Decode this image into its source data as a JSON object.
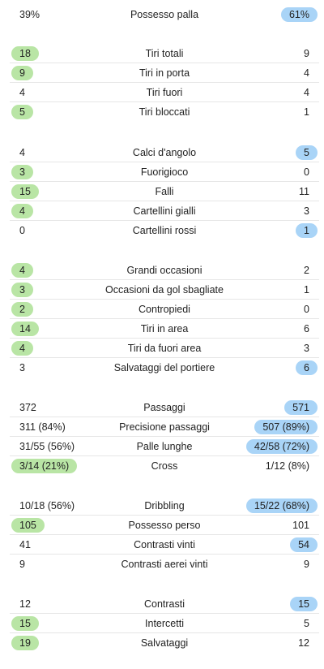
{
  "colors": {
    "home_highlight": "#b9e5a5",
    "away_highlight": "#a9d4f7",
    "divider": "#e6e6e6"
  },
  "sections": [
    {
      "rows": [
        {
          "label": "Possesso palla",
          "home": "39%",
          "away": "61%",
          "winner": "away"
        }
      ]
    },
    {
      "rows": [
        {
          "label": "Tiri totali",
          "home": "18",
          "away": "9",
          "winner": "home"
        },
        {
          "label": "Tiri in porta",
          "home": "9",
          "away": "4",
          "winner": "home"
        },
        {
          "label": "Tiri fuori",
          "home": "4",
          "away": "4",
          "winner": "none"
        },
        {
          "label": "Tiri bloccati",
          "home": "5",
          "away": "1",
          "winner": "home"
        }
      ]
    },
    {
      "rows": [
        {
          "label": "Calci d'angolo",
          "home": "4",
          "away": "5",
          "winner": "away"
        },
        {
          "label": "Fuorigioco",
          "home": "3",
          "away": "0",
          "winner": "home"
        },
        {
          "label": "Falli",
          "home": "15",
          "away": "11",
          "winner": "home"
        },
        {
          "label": "Cartellini gialli",
          "home": "4",
          "away": "3",
          "winner": "home"
        },
        {
          "label": "Cartellini rossi",
          "home": "0",
          "away": "1",
          "winner": "away"
        }
      ]
    },
    {
      "rows": [
        {
          "label": "Grandi occasioni",
          "home": "4",
          "away": "2",
          "winner": "home"
        },
        {
          "label": "Occasioni da gol sbagliate",
          "home": "3",
          "away": "1",
          "winner": "home"
        },
        {
          "label": "Contropiedi",
          "home": "2",
          "away": "0",
          "winner": "home"
        },
        {
          "label": "Tiri in area",
          "home": "14",
          "away": "6",
          "winner": "home"
        },
        {
          "label": "Tiri da fuori area",
          "home": "4",
          "away": "3",
          "winner": "home"
        },
        {
          "label": "Salvataggi del portiere",
          "home": "3",
          "away": "6",
          "winner": "away"
        }
      ]
    },
    {
      "rows": [
        {
          "label": "Passaggi",
          "home": "372",
          "away": "571",
          "winner": "away"
        },
        {
          "label": "Precisione passaggi",
          "home": "311 (84%)",
          "away": "507 (89%)",
          "winner": "away"
        },
        {
          "label": "Palle lunghe",
          "home": "31/55 (56%)",
          "away": "42/58 (72%)",
          "winner": "away"
        },
        {
          "label": "Cross",
          "home": "3/14 (21%)",
          "away": "1/12 (8%)",
          "winner": "home"
        }
      ]
    },
    {
      "rows": [
        {
          "label": "Dribbling",
          "home": "10/18 (56%)",
          "away": "15/22 (68%)",
          "winner": "away"
        },
        {
          "label": "Possesso perso",
          "home": "105",
          "away": "101",
          "winner": "home"
        },
        {
          "label": "Contrasti vinti",
          "home": "41",
          "away": "54",
          "winner": "away"
        },
        {
          "label": "Contrasti aerei vinti",
          "home": "9",
          "away": "9",
          "winner": "none"
        }
      ]
    },
    {
      "rows": [
        {
          "label": "Contrasti",
          "home": "12",
          "away": "15",
          "winner": "away"
        },
        {
          "label": "Intercetti",
          "home": "15",
          "away": "5",
          "winner": "home"
        },
        {
          "label": "Salvataggi",
          "home": "19",
          "away": "12",
          "winner": "home"
        }
      ]
    }
  ]
}
